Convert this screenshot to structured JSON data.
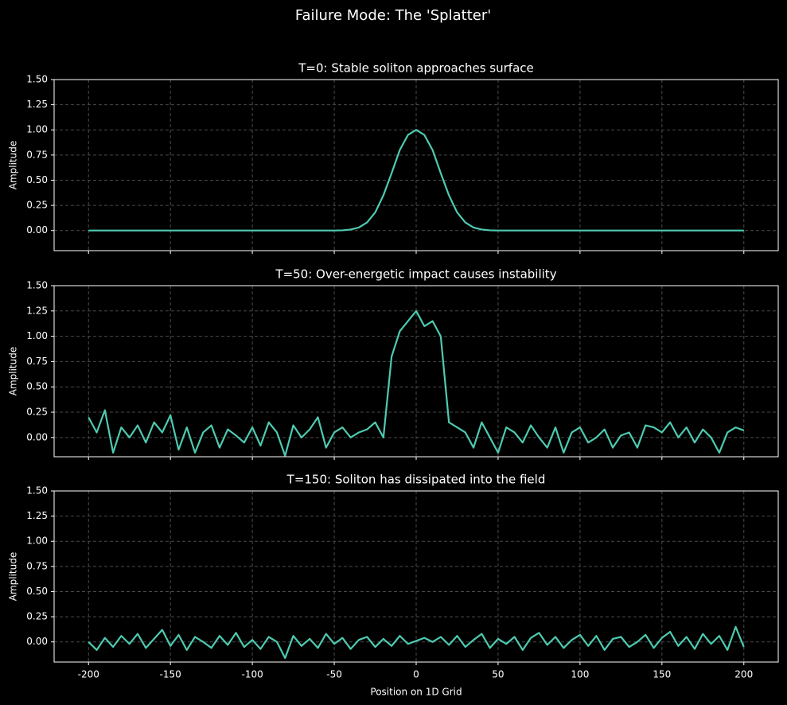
{
  "title": "Failure Mode: The 'Splatter'",
  "chart_data": [
    {
      "type": "line",
      "title": "T=0: Stable soliton approaches surface",
      "ylabel": "Amplitude",
      "xlim": [
        -221,
        221
      ],
      "ylim": [
        -0.2,
        1.5
      ],
      "xticks": [
        -200,
        -150,
        -100,
        -50,
        0,
        50,
        100,
        150,
        200
      ],
      "yticks": [
        {
          "value": 0,
          "label": "0.00"
        },
        {
          "value": 0.25,
          "label": "0.25"
        },
        {
          "value": 0.5,
          "label": "0.50"
        },
        {
          "value": 0.75,
          "label": "0.75"
        },
        {
          "value": 1,
          "label": "1.00"
        },
        {
          "value": 1.25,
          "label": "1.25"
        },
        {
          "value": 1.5,
          "label": "1.50"
        }
      ],
      "grid": true,
      "x": [
        -200,
        -195,
        -190,
        -185,
        -180,
        -175,
        -170,
        -165,
        -160,
        -155,
        -150,
        -145,
        -140,
        -135,
        -130,
        -125,
        -120,
        -115,
        -110,
        -105,
        -100,
        -95,
        -90,
        -85,
        -80,
        -75,
        -70,
        -65,
        -60,
        -55,
        -50,
        -45,
        -40,
        -35,
        -30,
        -25,
        -20,
        -15,
        -10,
        -5,
        0,
        5,
        10,
        15,
        20,
        25,
        30,
        35,
        40,
        45,
        50,
        55,
        60,
        65,
        70,
        75,
        80,
        85,
        90,
        95,
        100,
        105,
        110,
        115,
        120,
        125,
        130,
        135,
        140,
        145,
        150,
        155,
        160,
        165,
        170,
        175,
        180,
        185,
        190,
        195,
        200
      ],
      "series": [
        {
          "color": "#4ecab0",
          "values": [
            0,
            0,
            0,
            0,
            0,
            0,
            0,
            0,
            0,
            0,
            0,
            0,
            0,
            0,
            0,
            0,
            0,
            0,
            0,
            0,
            0,
            0,
            0,
            0,
            0,
            0,
            0,
            0,
            0,
            0,
            0,
            0.002,
            0.01,
            0.03,
            0.08,
            0.18,
            0.35,
            0.57,
            0.8,
            0.95,
            1.0,
            0.95,
            0.8,
            0.57,
            0.35,
            0.18,
            0.08,
            0.03,
            0.01,
            0.002,
            0,
            0,
            0,
            0,
            0,
            0,
            0,
            0,
            0,
            0,
            0,
            0,
            0,
            0,
            0,
            0,
            0,
            0,
            0,
            0,
            0,
            0,
            0,
            0,
            0,
            0,
            0,
            0,
            0,
            0,
            0
          ]
        }
      ]
    },
    {
      "type": "line",
      "title": "T=50: Over-energetic impact causes instability",
      "ylabel": "Amplitude",
      "xlim": [
        -221,
        221
      ],
      "ylim": [
        -0.19,
        1.5
      ],
      "xticks": [
        -200,
        -150,
        -100,
        -50,
        0,
        50,
        100,
        150,
        200
      ],
      "yticks": [
        {
          "value": 0,
          "label": "0.00"
        },
        {
          "value": 0.25,
          "label": "0.25"
        },
        {
          "value": 0.5,
          "label": "0.50"
        },
        {
          "value": 0.75,
          "label": "0.75"
        },
        {
          "value": 1,
          "label": "1.00"
        },
        {
          "value": 1.25,
          "label": "1.25"
        },
        {
          "value": 1.5,
          "label": "1.50"
        }
      ],
      "grid": true,
      "x": [
        -200,
        -195,
        -190,
        -185,
        -180,
        -175,
        -170,
        -165,
        -160,
        -155,
        -150,
        -145,
        -140,
        -135,
        -130,
        -125,
        -120,
        -115,
        -110,
        -105,
        -100,
        -95,
        -90,
        -85,
        -80,
        -75,
        -70,
        -65,
        -60,
        -55,
        -50,
        -45,
        -40,
        -35,
        -30,
        -25,
        -20,
        -15,
        -10,
        -5,
        0,
        5,
        10,
        15,
        20,
        25,
        30,
        35,
        40,
        45,
        50,
        55,
        60,
        65,
        70,
        75,
        80,
        85,
        90,
        95,
        100,
        105,
        110,
        115,
        120,
        125,
        130,
        135,
        140,
        145,
        150,
        155,
        160,
        165,
        170,
        175,
        180,
        185,
        190,
        195,
        200
      ],
      "series": [
        {
          "color": "#4ecab0",
          "values": [
            0.2,
            0.05,
            0.27,
            -0.15,
            0.1,
            0.0,
            0.12,
            -0.05,
            0.15,
            0.05,
            0.22,
            -0.12,
            0.1,
            -0.15,
            0.05,
            0.12,
            -0.1,
            0.08,
            0.02,
            -0.05,
            0.1,
            -0.08,
            0.15,
            0.05,
            -0.18,
            0.12,
            0.0,
            0.08,
            0.2,
            -0.1,
            0.05,
            0.1,
            0.0,
            0.05,
            0.08,
            0.15,
            0.0,
            0.8,
            1.05,
            1.15,
            1.25,
            1.1,
            1.15,
            1.0,
            0.15,
            0.1,
            0.05,
            -0.1,
            0.15,
            0.0,
            -0.15,
            0.1,
            0.05,
            -0.05,
            0.12,
            0.0,
            -0.1,
            0.1,
            -0.15,
            0.05,
            0.1,
            -0.05,
            0.0,
            0.08,
            -0.1,
            0.02,
            0.05,
            -0.1,
            0.12,
            0.1,
            0.05,
            0.15,
            0.0,
            0.1,
            -0.05,
            0.08,
            0.0,
            -0.15,
            0.05,
            0.1,
            0.07
          ]
        }
      ]
    },
    {
      "type": "line",
      "title": "T=150: Soliton has dissipated into the field",
      "ylabel": "Amplitude",
      "xlabel": "Position on 1D Grid",
      "xlim": [
        -221,
        221
      ],
      "ylim": [
        -0.2,
        1.5
      ],
      "xticks": [
        -200,
        -150,
        -100,
        -50,
        0,
        50,
        100,
        150,
        200
      ],
      "yticks": [
        {
          "value": 0,
          "label": "0.00"
        },
        {
          "value": 0.25,
          "label": "0.25"
        },
        {
          "value": 0.5,
          "label": "0.50"
        },
        {
          "value": 0.75,
          "label": "0.75"
        },
        {
          "value": 1,
          "label": "1.00"
        },
        {
          "value": 1.25,
          "label": "1.25"
        },
        {
          "value": 1.5,
          "label": "1.50"
        }
      ],
      "grid": true,
      "show_xtick_labels": true,
      "x": [
        -200,
        -195,
        -190,
        -185,
        -180,
        -175,
        -170,
        -165,
        -160,
        -155,
        -150,
        -145,
        -140,
        -135,
        -130,
        -125,
        -120,
        -115,
        -110,
        -105,
        -100,
        -95,
        -90,
        -85,
        -80,
        -75,
        -70,
        -65,
        -60,
        -55,
        -50,
        -45,
        -40,
        -35,
        -30,
        -25,
        -20,
        -15,
        -10,
        -5,
        0,
        5,
        10,
        15,
        20,
        25,
        30,
        35,
        40,
        45,
        50,
        55,
        60,
        65,
        70,
        75,
        80,
        85,
        90,
        95,
        100,
        105,
        110,
        115,
        120,
        125,
        130,
        135,
        140,
        145,
        150,
        155,
        160,
        165,
        170,
        175,
        180,
        185,
        190,
        195,
        200
      ],
      "series": [
        {
          "color": "#4ecab0",
          "values": [
            0.0,
            -0.08,
            0.04,
            -0.05,
            0.06,
            -0.02,
            0.08,
            -0.06,
            0.03,
            0.12,
            -0.04,
            0.07,
            -0.08,
            0.05,
            0.0,
            -0.06,
            0.06,
            -0.03,
            0.09,
            -0.05,
            0.02,
            -0.07,
            0.05,
            0.0,
            -0.16,
            0.06,
            -0.04,
            0.03,
            -0.06,
            0.08,
            -0.02,
            0.04,
            -0.07,
            0.02,
            0.05,
            -0.05,
            0.03,
            -0.04,
            0.06,
            -0.02,
            0.01,
            0.04,
            0.0,
            0.05,
            -0.03,
            0.06,
            -0.05,
            0.02,
            0.08,
            -0.06,
            0.03,
            -0.02,
            0.05,
            -0.08,
            0.04,
            0.09,
            -0.03,
            0.05,
            -0.06,
            0.02,
            0.07,
            -0.04,
            0.06,
            -0.08,
            0.03,
            0.05,
            -0.05,
            0.0,
            0.07,
            -0.06,
            0.04,
            0.1,
            -0.04,
            0.05,
            -0.07,
            0.08,
            -0.02,
            0.06,
            -0.08,
            0.15,
            -0.05
          ]
        }
      ]
    }
  ]
}
